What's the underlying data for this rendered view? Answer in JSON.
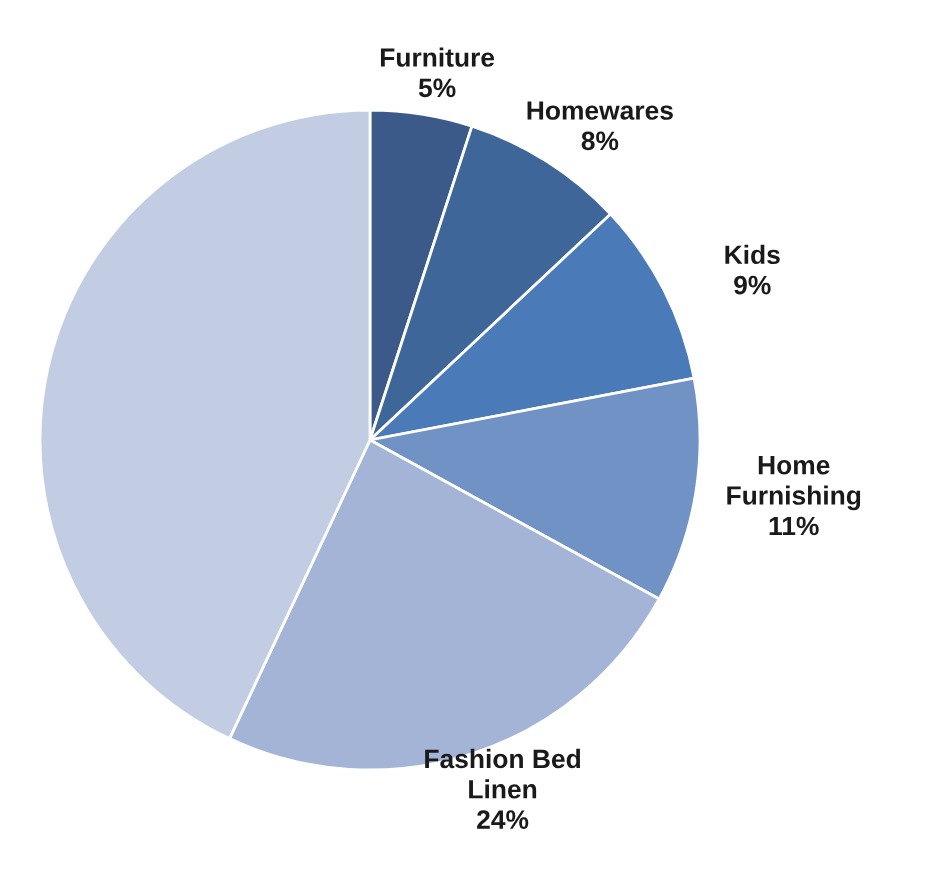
{
  "chart_data": {
    "type": "pie",
    "categories": [
      "Furniture",
      "Homewares",
      "Kids",
      "Home\nFurnishing",
      "Fashion Bed\nLinen",
      null
    ],
    "values": [
      5,
      8,
      9,
      11,
      24,
      43
    ],
    "colors": [
      "#3b5a8a",
      "#3e6699",
      "#4a7ab8",
      "#7192c4",
      "#a3b4d6",
      "#c2cce2"
    ],
    "value_labels": [
      "5%",
      "8%",
      "9%",
      "11%",
      "24%",
      null
    ]
  }
}
